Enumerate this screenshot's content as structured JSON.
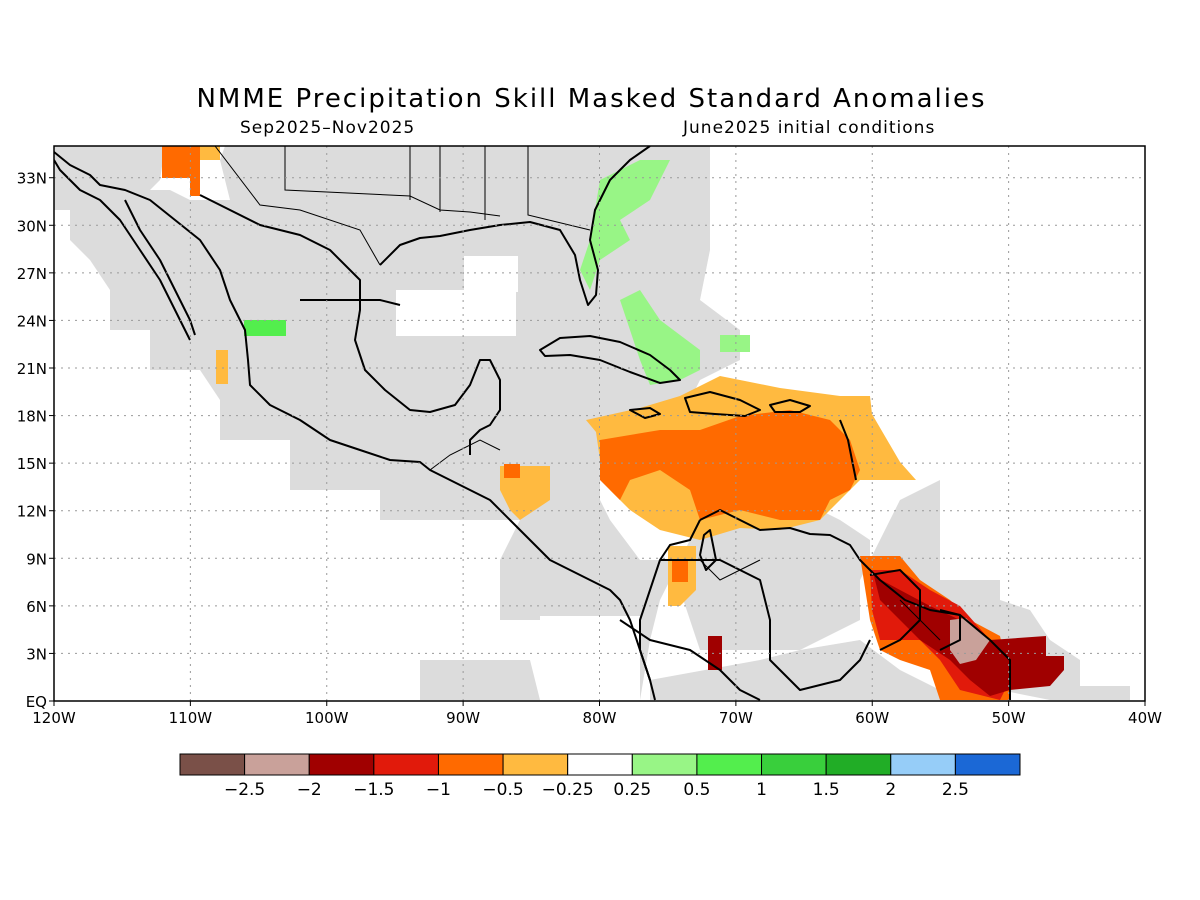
{
  "title": "NMME Precipitation Skill Masked Standard Anomalies",
  "subtitle_left": "Sep2025–Nov2025",
  "subtitle_right": "June2025 initial conditions",
  "map": {
    "lon_range": [
      -120,
      -40
    ],
    "lat_range": [
      0,
      35
    ],
    "lon_ticks": [
      "120W",
      "110W",
      "100W",
      "90W",
      "80W",
      "70W",
      "60W",
      "50W",
      "40W"
    ],
    "lat_ticks": [
      "EQ",
      "3N",
      "6N",
      "9N",
      "12N",
      "15N",
      "18N",
      "21N",
      "24N",
      "27N",
      "30N",
      "33N"
    ],
    "grid": "dotted"
  },
  "legend": {
    "colors": [
      "#7a5048",
      "#c9a19a",
      "#a00000",
      "#e11a0b",
      "#ff6a00",
      "#ffba40",
      "#ffffff",
      "#98f586",
      "#53ee4d",
      "#39cf3c",
      "#21ad26",
      "#96cdf8",
      "#1b68d6"
    ],
    "labels": [
      "−2.5",
      "−2",
      "−1.5",
      "−1",
      "−0.5",
      "−0.25",
      "0.25",
      "0.5",
      "1",
      "1.5",
      "2",
      "2.5"
    ]
  },
  "colors": {
    "masked": "#dcdcdc",
    "coast": "#000000"
  }
}
